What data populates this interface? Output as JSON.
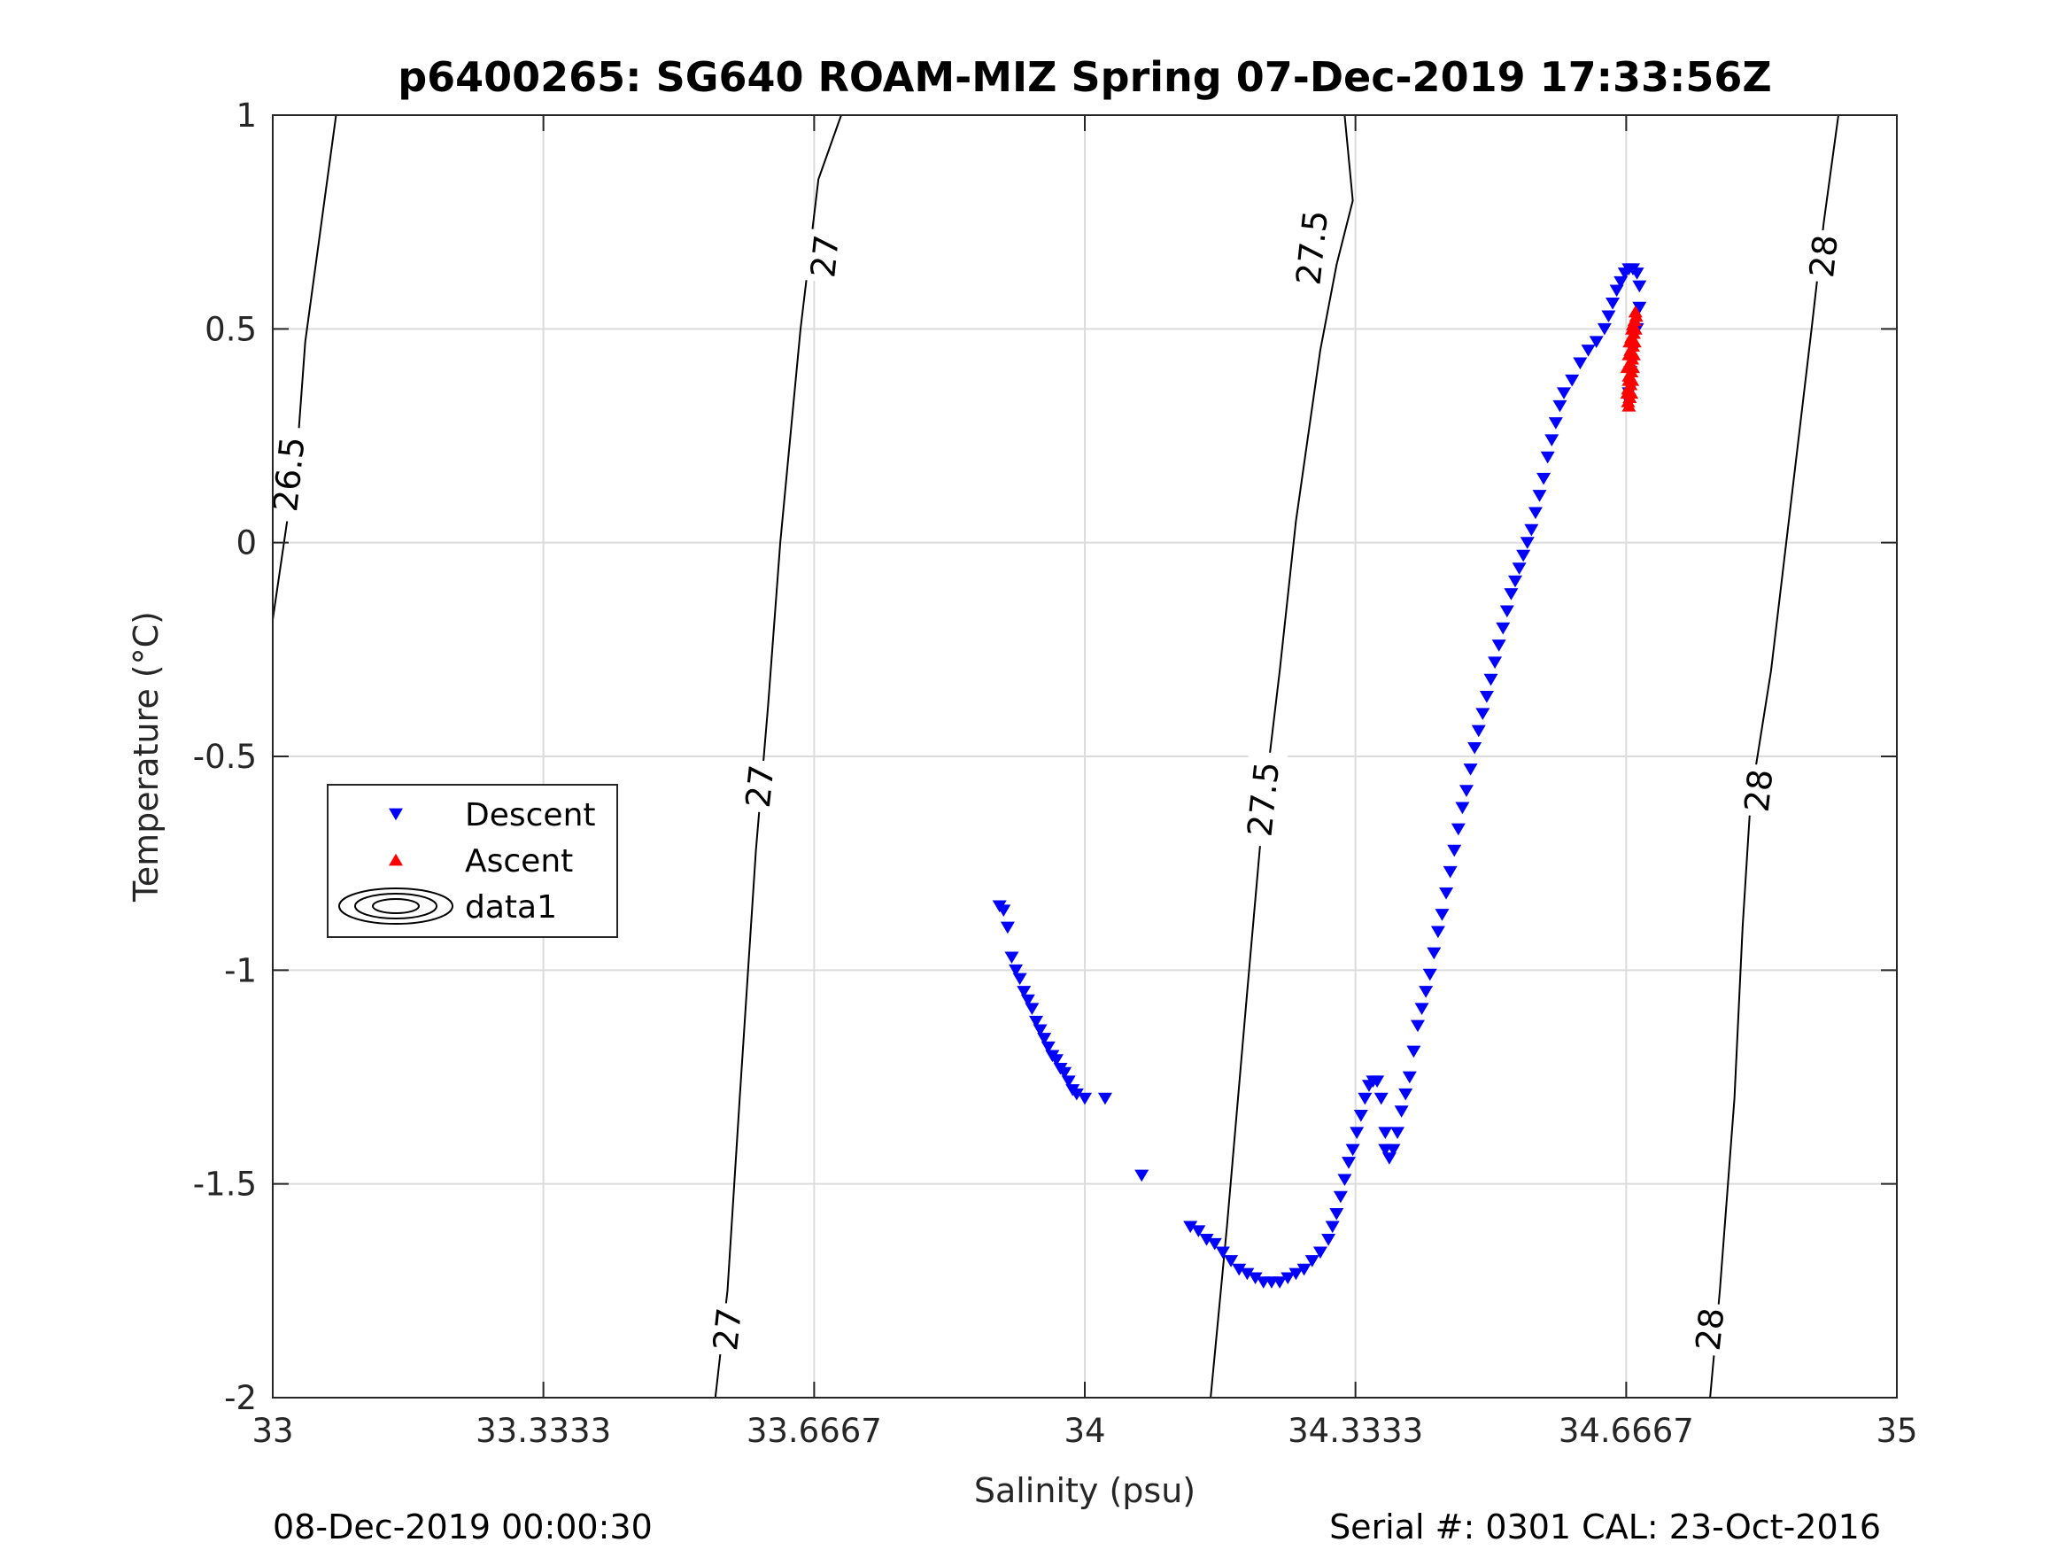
{
  "footer": {
    "timestamp": "08-Dec-2019 00:00:30",
    "serial_cal": "Serial #: 0301  CAL: 23-Oct-2016"
  },
  "chart_data": {
    "type": "scatter",
    "title": "p6400265: SG640 ROAM-MIZ Spring 07-Dec-2019 17:33:56Z",
    "xlabel": "Salinity (psu)",
    "ylabel": "Temperature (°C)",
    "xlim": [
      33,
      35
    ],
    "ylim": [
      -2,
      1
    ],
    "x_ticks": [
      33,
      33.3333,
      33.6667,
      34,
      34.3333,
      34.6667,
      35
    ],
    "x_tick_labels": [
      "33",
      "33.3333",
      "33.6667",
      "34",
      "34.3333",
      "34.6667",
      "35"
    ],
    "y_ticks": [
      -2,
      -1.5,
      -1,
      -0.5,
      0,
      0.5,
      1
    ],
    "y_tick_labels": [
      "-2",
      "-1.5",
      "-1",
      "-0.5",
      "0",
      "0.5",
      "1"
    ],
    "grid": true,
    "legend_position": "left-middle",
    "legend": [
      "Descent",
      "Ascent",
      "data1"
    ],
    "series": [
      {
        "name": "Descent",
        "marker": "triangle-down",
        "color": "#0000ff",
        "points": [
          [
            33.895,
            -0.85
          ],
          [
            33.9,
            -0.86
          ],
          [
            33.905,
            -0.9
          ],
          [
            33.91,
            -0.97
          ],
          [
            33.915,
            -1.0
          ],
          [
            33.92,
            -1.02
          ],
          [
            33.925,
            -1.05
          ],
          [
            33.93,
            -1.07
          ],
          [
            33.935,
            -1.09
          ],
          [
            33.94,
            -1.12
          ],
          [
            33.945,
            -1.14
          ],
          [
            33.95,
            -1.16
          ],
          [
            33.955,
            -1.18
          ],
          [
            33.96,
            -1.2
          ],
          [
            33.965,
            -1.21
          ],
          [
            33.97,
            -1.23
          ],
          [
            33.975,
            -1.24
          ],
          [
            33.98,
            -1.26
          ],
          [
            33.985,
            -1.28
          ],
          [
            33.99,
            -1.29
          ],
          [
            34.0,
            -1.3
          ],
          [
            34.025,
            -1.3
          ],
          [
            34.07,
            -1.48
          ],
          [
            34.13,
            -1.6
          ],
          [
            34.14,
            -1.61
          ],
          [
            34.15,
            -1.63
          ],
          [
            34.16,
            -1.64
          ],
          [
            34.17,
            -1.66
          ],
          [
            34.18,
            -1.68
          ],
          [
            34.19,
            -1.7
          ],
          [
            34.2,
            -1.71
          ],
          [
            34.21,
            -1.72
          ],
          [
            34.22,
            -1.73
          ],
          [
            34.23,
            -1.73
          ],
          [
            34.24,
            -1.73
          ],
          [
            34.25,
            -1.72
          ],
          [
            34.26,
            -1.71
          ],
          [
            34.27,
            -1.7
          ],
          [
            34.28,
            -1.68
          ],
          [
            34.29,
            -1.66
          ],
          [
            34.3,
            -1.63
          ],
          [
            34.305,
            -1.6
          ],
          [
            34.31,
            -1.57
          ],
          [
            34.315,
            -1.53
          ],
          [
            34.32,
            -1.49
          ],
          [
            34.325,
            -1.45
          ],
          [
            34.33,
            -1.42
          ],
          [
            34.335,
            -1.38
          ],
          [
            34.34,
            -1.34
          ],
          [
            34.345,
            -1.3
          ],
          [
            34.35,
            -1.27
          ],
          [
            34.355,
            -1.26
          ],
          [
            34.36,
            -1.26
          ],
          [
            34.365,
            -1.3
          ],
          [
            34.37,
            -1.38
          ],
          [
            34.37,
            -1.42
          ],
          [
            34.375,
            -1.44
          ],
          [
            34.38,
            -1.42
          ],
          [
            34.385,
            -1.38
          ],
          [
            34.39,
            -1.33
          ],
          [
            34.395,
            -1.29
          ],
          [
            34.4,
            -1.25
          ],
          [
            34.405,
            -1.19
          ],
          [
            34.41,
            -1.13
          ],
          [
            34.415,
            -1.09
          ],
          [
            34.42,
            -1.05
          ],
          [
            34.425,
            -1.01
          ],
          [
            34.43,
            -0.96
          ],
          [
            34.435,
            -0.91
          ],
          [
            34.44,
            -0.87
          ],
          [
            34.445,
            -0.82
          ],
          [
            34.45,
            -0.77
          ],
          [
            34.455,
            -0.72
          ],
          [
            34.46,
            -0.67
          ],
          [
            34.465,
            -0.62
          ],
          [
            34.47,
            -0.58
          ],
          [
            34.475,
            -0.53
          ],
          [
            34.48,
            -0.48
          ],
          [
            34.485,
            -0.44
          ],
          [
            34.49,
            -0.4
          ],
          [
            34.495,
            -0.36
          ],
          [
            34.5,
            -0.32
          ],
          [
            34.505,
            -0.28
          ],
          [
            34.51,
            -0.24
          ],
          [
            34.515,
            -0.2
          ],
          [
            34.52,
            -0.16
          ],
          [
            34.525,
            -0.12
          ],
          [
            34.53,
            -0.09
          ],
          [
            34.535,
            -0.06
          ],
          [
            34.54,
            -0.03
          ],
          [
            34.545,
            0.0
          ],
          [
            34.55,
            0.03
          ],
          [
            34.555,
            0.07
          ],
          [
            34.56,
            0.11
          ],
          [
            34.565,
            0.15
          ],
          [
            34.57,
            0.2
          ],
          [
            34.575,
            0.24
          ],
          [
            34.58,
            0.28
          ],
          [
            34.585,
            0.32
          ],
          [
            34.59,
            0.35
          ],
          [
            34.6,
            0.38
          ],
          [
            34.61,
            0.42
          ],
          [
            34.62,
            0.45
          ],
          [
            34.63,
            0.47
          ],
          [
            34.64,
            0.5
          ],
          [
            34.645,
            0.53
          ],
          [
            34.65,
            0.56
          ],
          [
            34.655,
            0.59
          ],
          [
            34.66,
            0.61
          ],
          [
            34.665,
            0.63
          ],
          [
            34.67,
            0.64
          ],
          [
            34.675,
            0.64
          ],
          [
            34.68,
            0.63
          ],
          [
            34.683,
            0.6
          ],
          [
            34.683,
            0.55
          ],
          [
            34.68,
            0.5
          ],
          [
            34.675,
            0.45
          ],
          [
            34.672,
            0.4
          ],
          [
            34.67,
            0.35
          ],
          [
            34.67,
            0.33
          ]
        ]
      },
      {
        "name": "Ascent",
        "marker": "triangle-up",
        "color": "#ff0000",
        "points": [
          [
            34.669,
            0.33
          ],
          [
            34.671,
            0.34
          ],
          [
            34.673,
            0.35
          ],
          [
            34.669,
            0.36
          ],
          [
            34.672,
            0.37
          ],
          [
            34.674,
            0.38
          ],
          [
            34.67,
            0.39
          ],
          [
            34.673,
            0.4
          ],
          [
            34.675,
            0.41
          ],
          [
            34.671,
            0.42
          ],
          [
            34.674,
            0.43
          ],
          [
            34.676,
            0.44
          ],
          [
            34.672,
            0.45
          ],
          [
            34.675,
            0.46
          ],
          [
            34.677,
            0.47
          ],
          [
            34.673,
            0.48
          ],
          [
            34.676,
            0.49
          ],
          [
            34.678,
            0.5
          ],
          [
            34.675,
            0.51
          ],
          [
            34.677,
            0.52
          ],
          [
            34.679,
            0.53
          ],
          [
            34.678,
            0.54
          ],
          [
            34.677,
            0.52
          ],
          [
            34.674,
            0.5
          ],
          [
            34.671,
            0.47
          ],
          [
            34.67,
            0.44
          ],
          [
            34.668,
            0.41
          ],
          [
            34.67,
            0.38
          ],
          [
            34.668,
            0.35
          ],
          [
            34.67,
            0.32
          ]
        ]
      }
    ],
    "density_contours": {
      "name": "data1",
      "levels": [
        {
          "value": "26.5",
          "points": [
            [
              33.0,
              -0.18
            ],
            [
              33.03,
              0.21
            ],
            [
              33.04,
              0.47
            ],
            [
              33.078,
              1.0
            ]
          ]
        },
        {
          "value": "27",
          "points": [
            [
              33.545,
              -2.0
            ],
            [
              33.56,
              -1.75
            ],
            [
              33.575,
              -1.3
            ],
            [
              33.595,
              -0.72
            ],
            [
              33.61,
              -0.38
            ],
            [
              33.625,
              0.0
            ],
            [
              33.65,
              0.5
            ],
            [
              33.672,
              0.85
            ],
            [
              33.7,
              1.0
            ]
          ]
        },
        {
          "value": "27.5",
          "points": [
            [
              34.155,
              -2.0
            ],
            [
              34.175,
              -1.6
            ],
            [
              34.2,
              -1.05
            ],
            [
              34.22,
              -0.62
            ],
            [
              34.24,
              -0.3
            ],
            [
              34.26,
              0.05
            ],
            [
              34.29,
              0.45
            ],
            [
              34.31,
              0.65
            ],
            [
              34.33,
              0.8
            ],
            [
              34.32,
              1.0
            ]
          ]
        },
        {
          "value": "28",
          "points": [
            [
              34.77,
              -2.0
            ],
            [
              34.782,
              -1.75
            ],
            [
              34.8,
              -1.3
            ],
            [
              34.81,
              -0.9
            ],
            [
              34.82,
              -0.6
            ],
            [
              34.845,
              -0.3
            ],
            [
              34.87,
              0.1
            ],
            [
              34.895,
              0.5
            ],
            [
              34.91,
              0.75
            ],
            [
              34.928,
              1.0
            ]
          ]
        }
      ],
      "labels": [
        {
          "text": "26.5",
          "x": 33.02,
          "y": 0.16
        },
        {
          "text": "27",
          "x": 33.56,
          "y": -1.84
        },
        {
          "text": "27",
          "x": 33.6,
          "y": -0.57
        },
        {
          "text": "27",
          "x": 33.68,
          "y": 0.67
        },
        {
          "text": "27.5",
          "x": 34.22,
          "y": -0.6
        },
        {
          "text": "27.5",
          "x": 34.28,
          "y": 0.69
        },
        {
          "text": "28",
          "x": 34.77,
          "y": -1.84
        },
        {
          "text": "28",
          "x": 34.83,
          "y": -0.58
        },
        {
          "text": "28",
          "x": 34.91,
          "y": 0.67
        }
      ]
    }
  }
}
